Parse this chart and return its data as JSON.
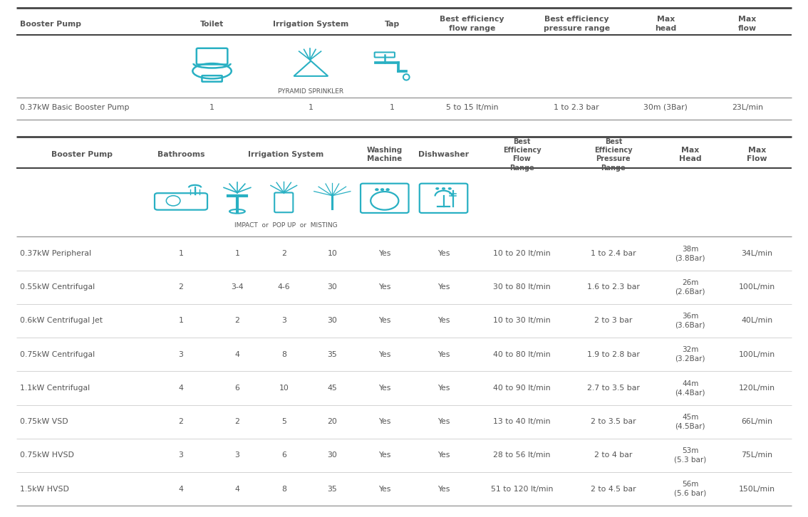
{
  "bg_color": "#ffffff",
  "text_color": "#555555",
  "teal_color": "#29b0c3",
  "dark_line": "#444444",
  "mid_line": "#999999",
  "light_line": "#cccccc",
  "table1": {
    "headers": [
      "Booster Pump",
      "Toilet",
      "Irrigation System",
      "Tap",
      "Best efficiency\nflow range",
      "Best efficiency\npressure range",
      "Max\nhead",
      "Max\nflow"
    ],
    "icon_label": "PYRAMID SPRINKLER",
    "data_rows": [
      [
        "0.37kW Basic Booster Pump",
        "1",
        "1",
        "1",
        "5 to 15 lt/min",
        "1 to 2.3 bar",
        "30m (3Bar)",
        "23L/min"
      ]
    ]
  },
  "table2": {
    "headers": [
      "Booster Pump",
      "Bathrooms",
      "Irrigation System",
      "Washing\nMachine",
      "Dishwasher",
      "Best\nEfficiency\nFlow\nRange",
      "Best\nEfficiency\nPressure\nRange",
      "Max\nHead",
      "Max\nFlow"
    ],
    "icon_label": "IMPACT  or  POP UP  or  MISTING",
    "data_rows": [
      [
        "0.37kW Peripheral",
        "1",
        "1",
        "2",
        "10",
        "Yes",
        "Yes",
        "10 to 20 lt/min",
        "1 to 2.4 bar",
        "38m\n(3.8Bar)",
        "34L/min"
      ],
      [
        "0.55kW Centrifugal",
        "2",
        "3-4",
        "4-6",
        "30",
        "Yes",
        "Yes",
        "30 to 80 lt/min",
        "1.6 to 2.3 bar",
        "26m\n(2.6Bar)",
        "100L/min"
      ],
      [
        "0.6kW Centrifugal Jet",
        "1",
        "2",
        "3",
        "30",
        "Yes",
        "Yes",
        "10 to 30 lt/min",
        "2 to 3 bar",
        "36m\n(3.6Bar)",
        "40L/min"
      ],
      [
        "0.75kW Centrifugal",
        "3",
        "4",
        "8",
        "35",
        "Yes",
        "Yes",
        "40 to 80 lt/min",
        "1.9 to 2.8 bar",
        "32m\n(3.2Bar)",
        "100L/min"
      ],
      [
        "1.1kW Centrifugal",
        "4",
        "6",
        "10",
        "45",
        "Yes",
        "Yes",
        "40 to 90 lt/min",
        "2.7 to 3.5 bar",
        "44m\n(4.4Bar)",
        "120L/min"
      ],
      [
        "0.75kW VSD",
        "2",
        "2",
        "5",
        "20",
        "Yes",
        "Yes",
        "13 to 40 lt/min",
        "2 to 3.5 bar",
        "45m\n(4.5Bar)",
        "66L/min"
      ],
      [
        "0.75kW HVSD",
        "3",
        "3",
        "6",
        "30",
        "Yes",
        "Yes",
        "28 to 56 lt/min",
        "2 to 4 bar",
        "53m\n(5.3 bar)",
        "75L/min"
      ],
      [
        "1.5kW HVSD",
        "4",
        "4",
        "8",
        "35",
        "Yes",
        "Yes",
        "51 to 120 lt/min",
        "2 to 4.5 bar",
        "56m\n(5.6 bar)",
        "150L/min"
      ]
    ]
  }
}
